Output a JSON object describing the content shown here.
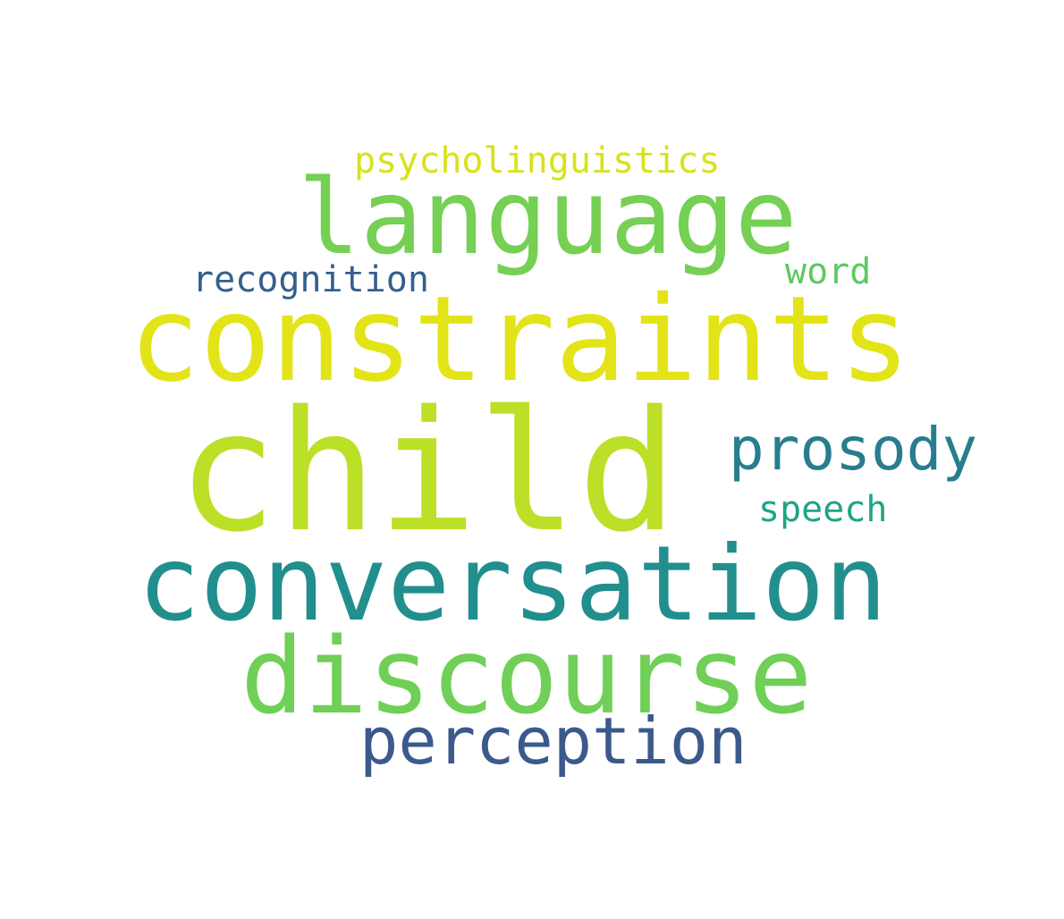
{
  "colors": {
    "background": "#ffffff"
  },
  "words": [
    {
      "key": "child",
      "text": "child",
      "color": "#bcdf27"
    },
    {
      "key": "constraints",
      "text": "constraints",
      "color": "#e2e418"
    },
    {
      "key": "conversation",
      "text": "conversation",
      "color": "#218f8d"
    },
    {
      "key": "language",
      "text": "language",
      "color": "#75d054"
    },
    {
      "key": "discourse",
      "text": "discourse",
      "color": "#70cf57"
    },
    {
      "key": "perception",
      "text": "perception",
      "color": "#3b5a8b"
    },
    {
      "key": "prosody",
      "text": "prosody",
      "color": "#287d8e"
    },
    {
      "key": "recognition",
      "text": "recognition",
      "color": "#355f8d"
    },
    {
      "key": "psycholinguistics",
      "text": "psycholinguistics",
      "color": "#d8e219"
    },
    {
      "key": "word",
      "text": "word",
      "color": "#5ec962"
    },
    {
      "key": "speech",
      "text": "speech",
      "color": "#20a386"
    }
  ]
}
